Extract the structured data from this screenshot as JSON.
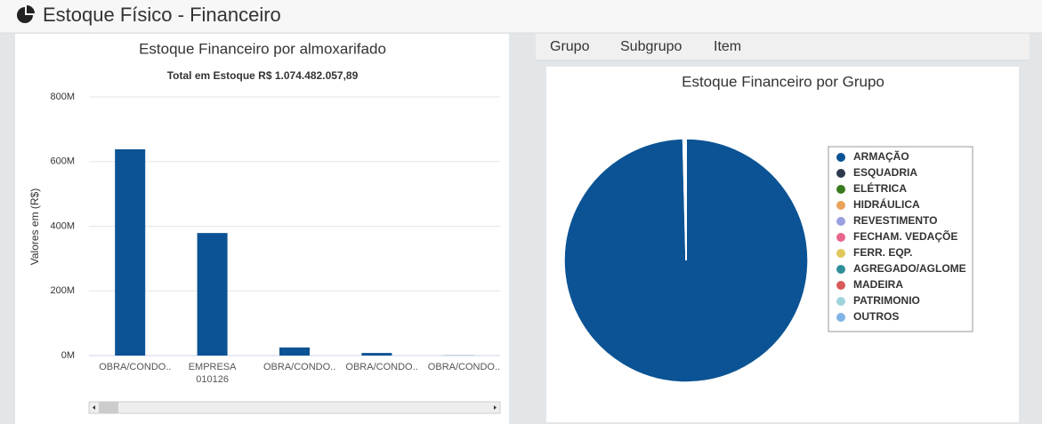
{
  "header": {
    "title": "Estoque Físico - Financeiro"
  },
  "tabs": [
    "Grupo",
    "Subgrupo",
    "Item"
  ],
  "chart_data": [
    {
      "type": "bar",
      "title": "Estoque Financeiro por almoxarifado",
      "subtitle": "Total em Estoque R$ 1.074.482.057,89",
      "y_label": "Valores em (R$)",
      "categories": [
        "OBRA/CONDO...",
        "EMPRESA 010126",
        "OBRA/CONDO...",
        "OBRA/CONDO...",
        "OBRA/CONDO..."
      ],
      "values": [
        638000000,
        379000000,
        25000000,
        8000000,
        500000
      ],
      "color": "#0b5394",
      "ylim": [
        0,
        800000000
      ],
      "yticks": [
        {
          "value": 0,
          "label": "0M"
        },
        {
          "value": 200000000,
          "label": "200M"
        },
        {
          "value": 400000000,
          "label": "400M"
        },
        {
          "value": 600000000,
          "label": "600M"
        },
        {
          "value": 800000000,
          "label": "800M"
        }
      ],
      "grid": true
    },
    {
      "type": "pie",
      "title": "Estoque Financeiro por Grupo",
      "legend": "right",
      "categories": [
        "ARMAÇÃO",
        "ESQUADRIA",
        "ELÉTRICA",
        "HIDRÁULICA",
        "REVESTIMENTO",
        "FECHAM. VEDAÇÕE",
        "FERR. EQP.",
        "AGREGADO/AGLOME",
        "MADEIRA",
        "PATRIMONIO",
        "OUTROS"
      ],
      "values": [
        99.6,
        0.2,
        0.1,
        0.03,
        0.02,
        0.01,
        0.01,
        0.01,
        0.01,
        0.005,
        0.005
      ],
      "colors": [
        "#0b5394",
        "#2e3b4e",
        "#3a7a1e",
        "#e8a35a",
        "#9aa0e0",
        "#e8658a",
        "#e0c85a",
        "#2f8f99",
        "#d95a5a",
        "#9fd3dc",
        "#7fb4e6"
      ]
    }
  ]
}
